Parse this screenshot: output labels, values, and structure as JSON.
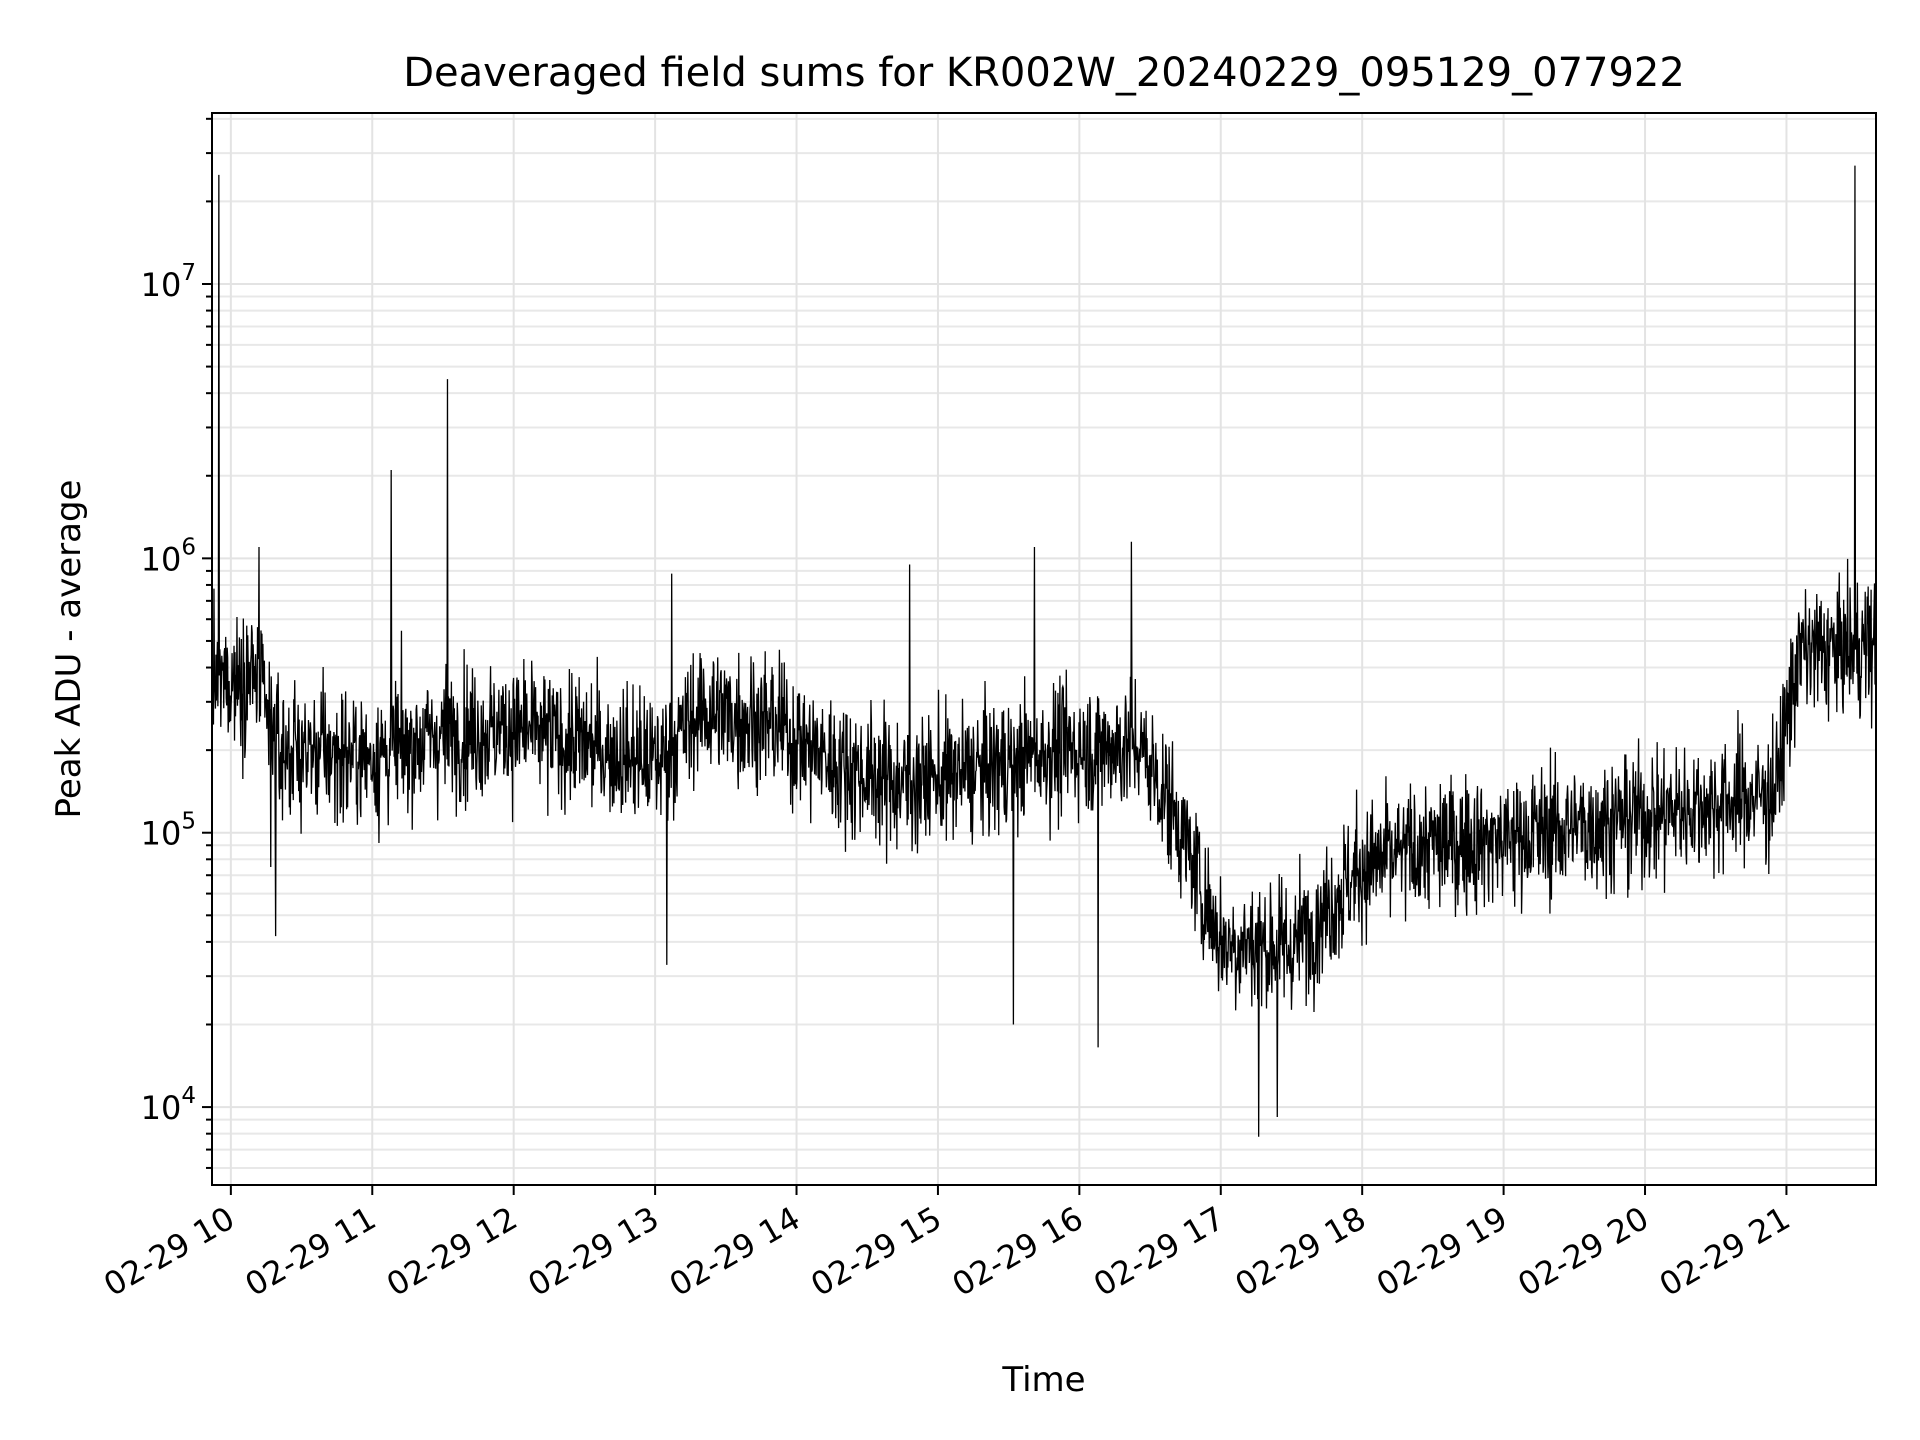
{
  "chart_data": {
    "type": "line",
    "title": "Deaveraged field sums for KR002W_20240229_095129_077922",
    "xlabel": "Time",
    "ylabel": "Peak ADU - average",
    "yscale": "log",
    "ylim": [
      5200,
      42000000
    ],
    "xlim": [
      "2024-02-29 09:52",
      "2024-02-29 21:38"
    ],
    "grid": true,
    "color": "#000000",
    "x_ticks": [
      {
        "label": "02-29 10",
        "time": "2024-02-29 10:00"
      },
      {
        "label": "02-29 11",
        "time": "2024-02-29 11:00"
      },
      {
        "label": "02-29 12",
        "time": "2024-02-29 12:00"
      },
      {
        "label": "02-29 13",
        "time": "2024-02-29 13:00"
      },
      {
        "label": "02-29 14",
        "time": "2024-02-29 14:00"
      },
      {
        "label": "02-29 15",
        "time": "2024-02-29 15:00"
      },
      {
        "label": "02-29 16",
        "time": "2024-02-29 16:00"
      },
      {
        "label": "02-29 17",
        "time": "2024-02-29 17:00"
      },
      {
        "label": "02-29 18",
        "time": "2024-02-29 18:00"
      },
      {
        "label": "02-29 19",
        "time": "2024-02-29 19:00"
      },
      {
        "label": "02-29 20",
        "time": "2024-02-29 20:00"
      },
      {
        "label": "02-29 21",
        "time": "2024-02-29 21:00"
      }
    ],
    "y_ticks": [
      {
        "base": "10",
        "exp": "4",
        "value": 10000
      },
      {
        "base": "10",
        "exp": "5",
        "value": 100000
      },
      {
        "base": "10",
        "exp": "6",
        "value": 1000000
      },
      {
        "base": "10",
        "exp": "7",
        "value": 10000000
      }
    ],
    "x_time_range": [
      "2024-02-29 09:52",
      "2024-02-29 21:38"
    ],
    "trend": [
      {
        "time": "2024-02-29 09:52",
        "value": 350000
      },
      {
        "time": "2024-02-29 10:10",
        "value": 380000
      },
      {
        "time": "2024-02-29 10:20",
        "value": 200000
      },
      {
        "time": "2024-02-29 11:00",
        "value": 190000
      },
      {
        "time": "2024-02-29 11:30",
        "value": 230000
      },
      {
        "time": "2024-02-29 12:00",
        "value": 240000
      },
      {
        "time": "2024-02-29 12:30",
        "value": 210000
      },
      {
        "time": "2024-02-29 13:00",
        "value": 180000
      },
      {
        "time": "2024-02-29 13:20",
        "value": 280000
      },
      {
        "time": "2024-02-29 13:50",
        "value": 250000
      },
      {
        "time": "2024-02-29 14:15",
        "value": 180000
      },
      {
        "time": "2024-02-29 14:45",
        "value": 150000
      },
      {
        "time": "2024-02-29 15:20",
        "value": 170000
      },
      {
        "time": "2024-02-29 15:50",
        "value": 200000
      },
      {
        "time": "2024-02-29 16:25",
        "value": 210000
      },
      {
        "time": "2024-02-29 16:40",
        "value": 120000
      },
      {
        "time": "2024-02-29 17:00",
        "value": 40000
      },
      {
        "time": "2024-02-29 17:30",
        "value": 38000
      },
      {
        "time": "2024-02-29 18:00",
        "value": 75000
      },
      {
        "time": "2024-02-29 18:30",
        "value": 90000
      },
      {
        "time": "2024-02-29 19:00",
        "value": 95000
      },
      {
        "time": "2024-02-29 19:30",
        "value": 105000
      },
      {
        "time": "2024-02-29 20:00",
        "value": 115000
      },
      {
        "time": "2024-02-29 20:55",
        "value": 140000
      },
      {
        "time": "2024-02-29 21:05",
        "value": 450000
      },
      {
        "time": "2024-02-29 21:38",
        "value": 480000
      }
    ],
    "spikes": [
      {
        "time": "2024-02-29 09:55",
        "value": 25000000
      },
      {
        "time": "2024-02-29 10:12",
        "value": 1100000
      },
      {
        "time": "2024-02-29 10:17",
        "value": 75000
      },
      {
        "time": "2024-02-29 10:19",
        "value": 42000
      },
      {
        "time": "2024-02-29 11:08",
        "value": 2100000
      },
      {
        "time": "2024-02-29 11:32",
        "value": 4500000
      },
      {
        "time": "2024-02-29 13:07",
        "value": 880000
      },
      {
        "time": "2024-02-29 13:05",
        "value": 33000
      },
      {
        "time": "2024-02-29 14:48",
        "value": 950000
      },
      {
        "time": "2024-02-29 15:32",
        "value": 20000
      },
      {
        "time": "2024-02-29 15:41",
        "value": 1100000
      },
      {
        "time": "2024-02-29 16:08",
        "value": 16500
      },
      {
        "time": "2024-02-29 16:22",
        "value": 1150000
      },
      {
        "time": "2024-02-29 17:16",
        "value": 7800
      },
      {
        "time": "2024-02-29 17:24",
        "value": 9200
      },
      {
        "time": "2024-02-29 21:29",
        "value": 27000000
      }
    ]
  }
}
